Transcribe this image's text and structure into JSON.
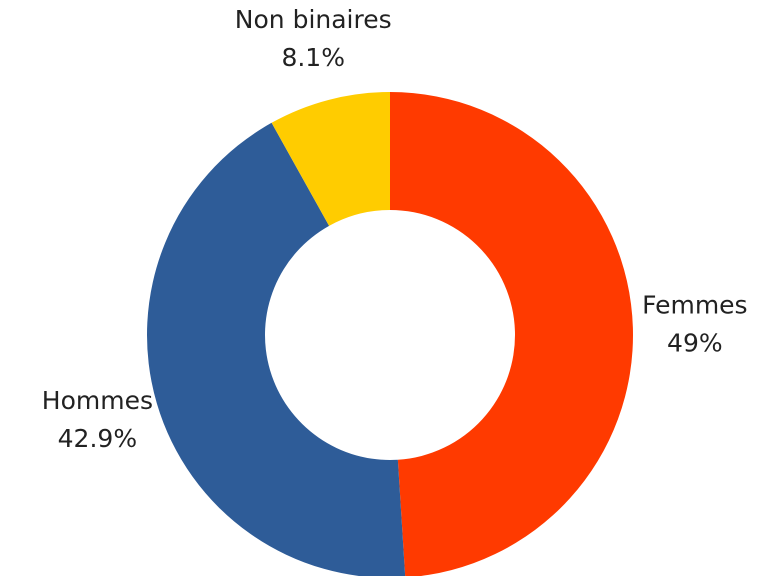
{
  "chart_data": {
    "type": "donut",
    "categories": [
      "Femmes",
      "Hommes",
      "Non binaires"
    ],
    "values": [
      49,
      42.9,
      8.1
    ],
    "value_labels": [
      "49%",
      "42.9%",
      "8.1%"
    ],
    "colors": [
      "#ff3a00",
      "#2e5c98",
      "#ffcc00"
    ]
  }
}
